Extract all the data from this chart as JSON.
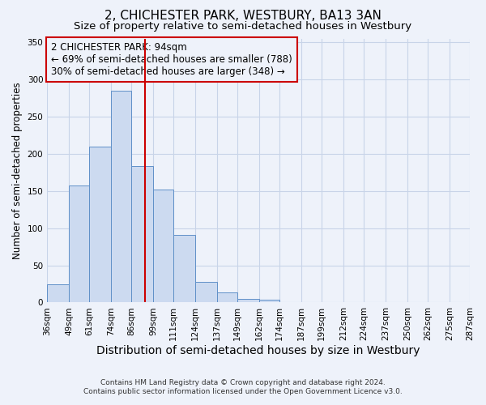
{
  "title": "2, CHICHESTER PARK, WESTBURY, BA13 3AN",
  "subtitle": "Size of property relative to semi-detached houses in Westbury",
  "xlabel": "Distribution of semi-detached houses by size in Westbury",
  "ylabel": "Number of semi-detached properties",
  "footer_line1": "Contains HM Land Registry data © Crown copyright and database right 2024.",
  "footer_line2": "Contains public sector information licensed under the Open Government Licence v3.0.",
  "annotation_title": "2 CHICHESTER PARK: 94sqm",
  "annotation_line1": "← 69% of semi-detached houses are smaller (788)",
  "annotation_line2": "30% of semi-detached houses are larger (348) →",
  "property_size": 94,
  "bin_edges": [
    36,
    49,
    61,
    74,
    86,
    99,
    111,
    124,
    137,
    149,
    162,
    174,
    187,
    199,
    212,
    224,
    237,
    250,
    262,
    275,
    287
  ],
  "bin_counts": [
    25,
    157,
    210,
    285,
    183,
    152,
    91,
    28,
    14,
    5,
    4,
    0,
    0,
    1,
    0,
    0,
    0,
    1,
    0,
    0
  ],
  "bar_facecolor": "#ccdaf0",
  "bar_edgecolor": "#6090c8",
  "vline_color": "#cc0000",
  "grid_color": "#c8d4e8",
  "background_color": "#eef2fa",
  "box_edgecolor": "#cc0000",
  "box_facecolor": "#eef2fa",
  "ylim": [
    0,
    355
  ],
  "yticks": [
    0,
    50,
    100,
    150,
    200,
    250,
    300,
    350
  ],
  "title_fontsize": 11,
  "subtitle_fontsize": 9.5,
  "xlabel_fontsize": 10,
  "ylabel_fontsize": 8.5,
  "tick_label_fontsize": 7.5,
  "annotation_fontsize": 8.5,
  "footer_fontsize": 6.5
}
